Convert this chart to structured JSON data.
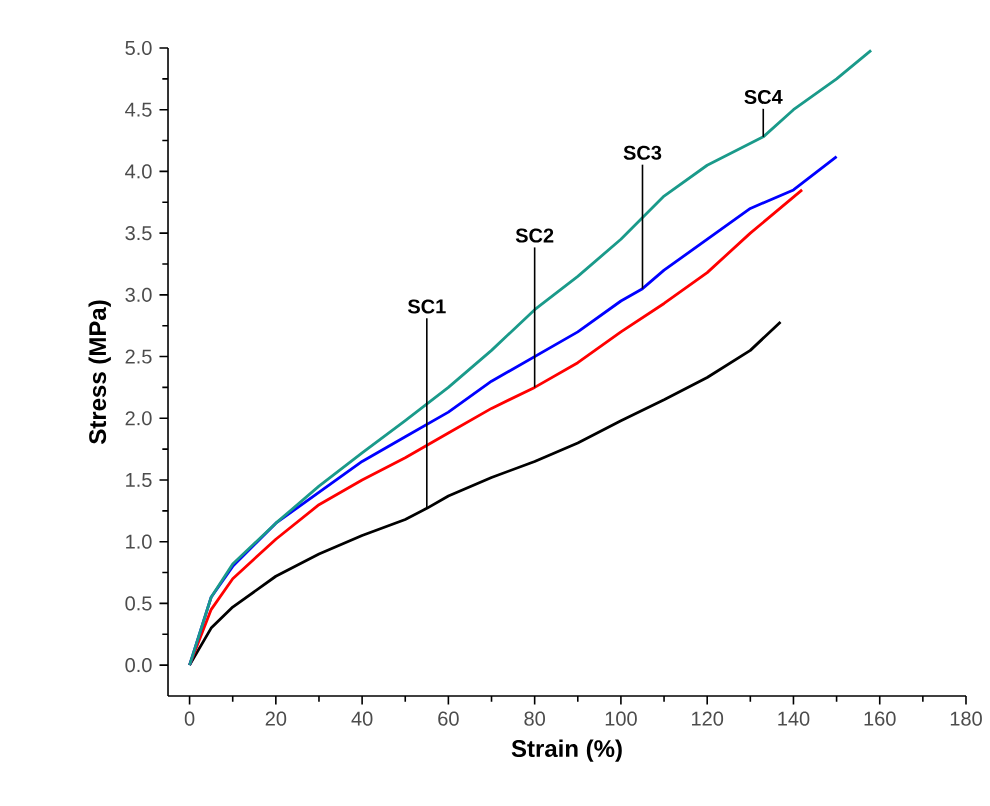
{
  "chart_data": {
    "type": "line",
    "xlabel": "Strain (%)",
    "ylabel": "Stress (MPa)",
    "xlim": [
      -5,
      180
    ],
    "ylim": [
      -0.25,
      5.0
    ],
    "xticks": [
      0,
      20,
      40,
      60,
      80,
      100,
      120,
      140,
      160,
      180
    ],
    "yticks": [
      {
        "value": 0,
        "label": "0.0"
      },
      {
        "value": 0.5,
        "label": "0.5"
      },
      {
        "value": 1,
        "label": "1.0"
      },
      {
        "value": 1.5,
        "label": "1.5"
      },
      {
        "value": 2,
        "label": "2.0"
      },
      {
        "value": 2.5,
        "label": "2.5"
      },
      {
        "value": 3,
        "label": "3.0"
      },
      {
        "value": 3.5,
        "label": "3.5"
      },
      {
        "value": 4,
        "label": "4.0"
      },
      {
        "value": 4.5,
        "label": "4.5"
      },
      {
        "value": 5,
        "label": "5.0"
      }
    ],
    "grid": false,
    "marker": "none",
    "line_style": "solid",
    "series": [
      {
        "color": "#000000",
        "x": [
          0,
          5,
          10,
          20,
          30,
          40,
          50,
          55,
          60,
          70,
          80,
          90,
          100,
          110,
          120,
          130,
          137
        ],
        "values": [
          0,
          0.3,
          0.47,
          0.72,
          0.9,
          1.05,
          1.18,
          1.27,
          1.37,
          1.52,
          1.65,
          1.8,
          1.98,
          2.15,
          2.33,
          2.55,
          2.78
        ]
      },
      {
        "color": "#ff0000",
        "x": [
          0,
          5,
          10,
          20,
          30,
          40,
          50,
          60,
          70,
          80,
          90,
          100,
          110,
          120,
          130,
          142
        ],
        "values": [
          0,
          0.45,
          0.7,
          1.02,
          1.3,
          1.5,
          1.68,
          1.88,
          2.08,
          2.25,
          2.45,
          2.7,
          2.93,
          3.18,
          3.5,
          3.85
        ]
      },
      {
        "color": "#0000ff",
        "x": [
          0,
          5,
          10,
          20,
          30,
          40,
          50,
          60,
          70,
          80,
          90,
          100,
          105,
          110,
          120,
          130,
          140,
          150
        ],
        "values": [
          0,
          0.55,
          0.8,
          1.15,
          1.4,
          1.65,
          1.85,
          2.05,
          2.3,
          2.5,
          2.7,
          2.95,
          3.05,
          3.2,
          3.45,
          3.7,
          3.85,
          4.12
        ]
      },
      {
        "color": "#1a9a8a",
        "x": [
          0,
          5,
          10,
          20,
          30,
          40,
          50,
          60,
          70,
          80,
          90,
          100,
          110,
          120,
          133,
          140,
          150,
          158
        ],
        "values": [
          0,
          0.55,
          0.82,
          1.15,
          1.45,
          1.72,
          1.98,
          2.25,
          2.55,
          2.88,
          3.15,
          3.45,
          3.8,
          4.05,
          4.28,
          4.5,
          4.75,
          4.98
        ]
      }
    ],
    "annotations": [
      {
        "text": "SC1",
        "x": 55,
        "y": 1.27
      },
      {
        "text": "SC2",
        "x": 80,
        "y": 2.25
      },
      {
        "text": "SC3",
        "x": 105,
        "y": 3.05
      },
      {
        "text": "SC4",
        "x": 133,
        "y": 4.28
      }
    ]
  }
}
